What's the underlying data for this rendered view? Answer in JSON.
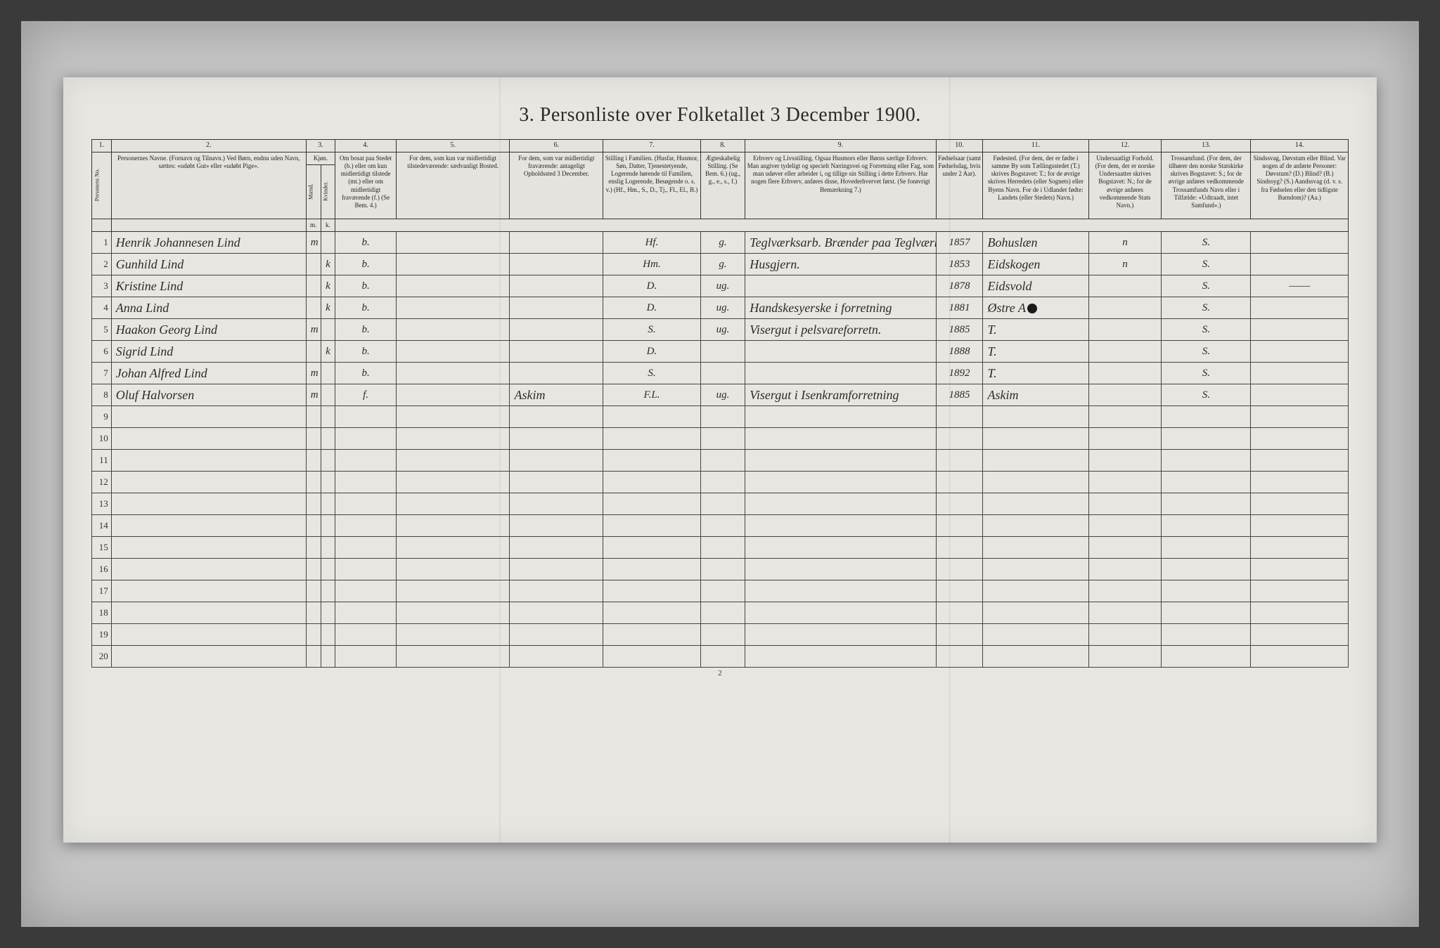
{
  "title": "3.  Personliste over Folketallet 3 December 1900.",
  "footer_page": "2",
  "columns": {
    "c1": {
      "num": "1.",
      "label": ""
    },
    "c2": {
      "num": "2.",
      "label": "Personernes Navne.\n(Fornavn og Tilnavn.)\nVed Børn, endnu uden Navn, sættes: «udøbt Gut» eller «udøbt Pige»."
    },
    "c3": {
      "num": "3.",
      "label": "Kjøn.",
      "sub_m": "m.",
      "sub_k": "k."
    },
    "c4": {
      "num": "4.",
      "label": "Om bosat paa Stedet (b.) eller om kun midlertidigt tilstede (mt.) eller om midlertidigt fraværende (f.) (Se Bem. 4.)"
    },
    "c5": {
      "num": "5.",
      "label": "For dem, som kun var midlertidigt tilstedeværende:\nsædvanligt Bosted."
    },
    "c6": {
      "num": "6.",
      "label": "For dem, som var midlertidigt fraværende:\nantageligt Opholdssted 3 December."
    },
    "c7": {
      "num": "7.",
      "label": "Stilling i Familien.\n(Husfar, Husmor, Søn, Datter, Tjenestetyende, Logerende hørende til Familien, enslig Logerende, Besøgende o. s. v.)\n(Hf., Hm., S., D., Tj., Fl., El., B.)"
    },
    "c8": {
      "num": "8.",
      "label": "Ægteskabelig Stilling.\n(Se Bem. 6.)\n(ug., g., e., s., f.)"
    },
    "c9": {
      "num": "9.",
      "label": "Erhverv og Livsstilling.\nOgsaa Husmors eller Børns særlige Erhverv. Man angiver tydeligt og specielt Næringsvei og Forretning eller Fag, som man udøver eller arbeider i, og tillige sin Stilling i dette Erhverv. Har nogen flere Erhverv, anføres disse, Hovederhvervet først.\n(Se forøvrigt Bemærkning 7.)"
    },
    "c10": {
      "num": "10.",
      "label": "Fødselsaar\n(samt Fødselsdag, hvis under 2 Aar)."
    },
    "c11": {
      "num": "11.",
      "label": "Fødested.\n(For dem, der er fødte i samme By som Tællingsstedet (T.) skrives Bogstavet: T.; for de øvrige skrives Herredets (eller Sognets) eller Byens Navn. For de i Udlandet fødte: Landets (eller Stedets) Navn.)"
    },
    "c12": {
      "num": "12.",
      "label": "Undersaatligt Forhold.\n(For dem, der er norske Undersaatter skrives Bogstavet: N.; for de øvrige anføres vedkommende Stats Navn.)"
    },
    "c13": {
      "num": "13.",
      "label": "Trossamfund.\n(For dem, der tilhører den norske Statskirke skrives Bogstavet: S.; for de øvrige anføres vedkommende Trossamfunds Navn eller i Tilfælde: «Udtraadt, intet Samfund».)"
    },
    "c14": {
      "num": "14.",
      "label": "Sindssvag, Døvstum eller Blind.\nVar nogen af de anførte Personer:\nDøvstum? (D.)\nBlind? (B.)\nSindssyg? (S.)\nAandssvag (d. v. s. fra Fødselen eller den tidligste Barndom)? (Aa.)"
    }
  },
  "rowlabel": "Personens No.",
  "kvinder": "Kvinder.",
  "maend": "Mænd.",
  "rows": [
    {
      "n": "1",
      "name": "Henrik Johannesen Lind",
      "sex_m": "m",
      "sex_k": "",
      "res": "b.",
      "c5": "",
      "c6": "",
      "fam": "Hf.",
      "mar": "g.",
      "occ": "Teglværksarb. Brænder paa Teglværk.",
      "year": "1857",
      "birthplace": "Bohuslæn",
      "nat": "n",
      "faith": "S.",
      "c14": ""
    },
    {
      "n": "2",
      "name": "Gunhild Lind",
      "sex_m": "",
      "sex_k": "k",
      "res": "b.",
      "c5": "",
      "c6": "",
      "fam": "Hm.",
      "mar": "g.",
      "occ": "Husgjern.",
      "year": "1853",
      "birthplace": "Eidskogen",
      "nat": "n",
      "faith": "S.",
      "c14": ""
    },
    {
      "n": "3",
      "name": "Kristine Lind",
      "sex_m": "",
      "sex_k": "k",
      "res": "b.",
      "c5": "",
      "c6": "",
      "fam": "D.",
      "mar": "ug.",
      "occ": "",
      "year": "1878",
      "birthplace": "Eidsvold",
      "nat": "",
      "faith": "S.",
      "c14": "——"
    },
    {
      "n": "4",
      "name": "Anna Lind",
      "sex_m": "",
      "sex_k": "k",
      "res": "b.",
      "c5": "",
      "c6": "",
      "fam": "D.",
      "mar": "ug.",
      "occ": "Handskesyerske i forretning",
      "year": "1881",
      "birthplace": "Østre A⚫",
      "nat": "",
      "faith": "S.",
      "c14": ""
    },
    {
      "n": "5",
      "name": "Haakon Georg Lind",
      "sex_m": "m",
      "sex_k": "",
      "res": "b.",
      "c5": "",
      "c6": "",
      "fam": "S.",
      "mar": "ug.",
      "occ": "Visergut i pelsvareforretn.",
      "year": "1885",
      "birthplace": "T.",
      "nat": "",
      "faith": "S.",
      "c14": ""
    },
    {
      "n": "6",
      "name": "Sigrid Lind",
      "sex_m": "",
      "sex_k": "k",
      "res": "b.",
      "c5": "",
      "c6": "",
      "fam": "D.",
      "mar": "",
      "occ": "",
      "year": "1888",
      "birthplace": "T.",
      "nat": "",
      "faith": "S.",
      "c14": ""
    },
    {
      "n": "7",
      "name": "Johan Alfred Lind",
      "sex_m": "m",
      "sex_k": "",
      "res": "b.",
      "c5": "",
      "c6": "",
      "fam": "S.",
      "mar": "",
      "occ": "",
      "year": "1892",
      "birthplace": "T.",
      "nat": "",
      "faith": "S.",
      "c14": ""
    },
    {
      "n": "8",
      "name": "Oluf Halvorsen",
      "sex_m": "m",
      "sex_k": "",
      "res": "f.",
      "c5": "",
      "c6": "Askim",
      "fam": "F.L.",
      "mar": "ug.",
      "occ": "Visergut i Isenkramforretning",
      "year": "1885",
      "birthplace": "Askim",
      "nat": "",
      "faith": "S.",
      "c14": ""
    },
    {
      "n": "9"
    },
    {
      "n": "10"
    },
    {
      "n": "11"
    },
    {
      "n": "12"
    },
    {
      "n": "13"
    },
    {
      "n": "14"
    },
    {
      "n": "15"
    },
    {
      "n": "16"
    },
    {
      "n": "17"
    },
    {
      "n": "18"
    },
    {
      "n": "19"
    },
    {
      "n": "20"
    }
  ],
  "col_widths": {
    "c1": "24px",
    "c2": "240px",
    "c3m": "18px",
    "c3k": "18px",
    "c4": "75px",
    "c5": "140px",
    "c6": "115px",
    "c7": "120px",
    "c8": "55px",
    "c9": "235px",
    "c10": "58px",
    "c11": "130px",
    "c12": "90px",
    "c13": "110px",
    "c14": "120px"
  }
}
